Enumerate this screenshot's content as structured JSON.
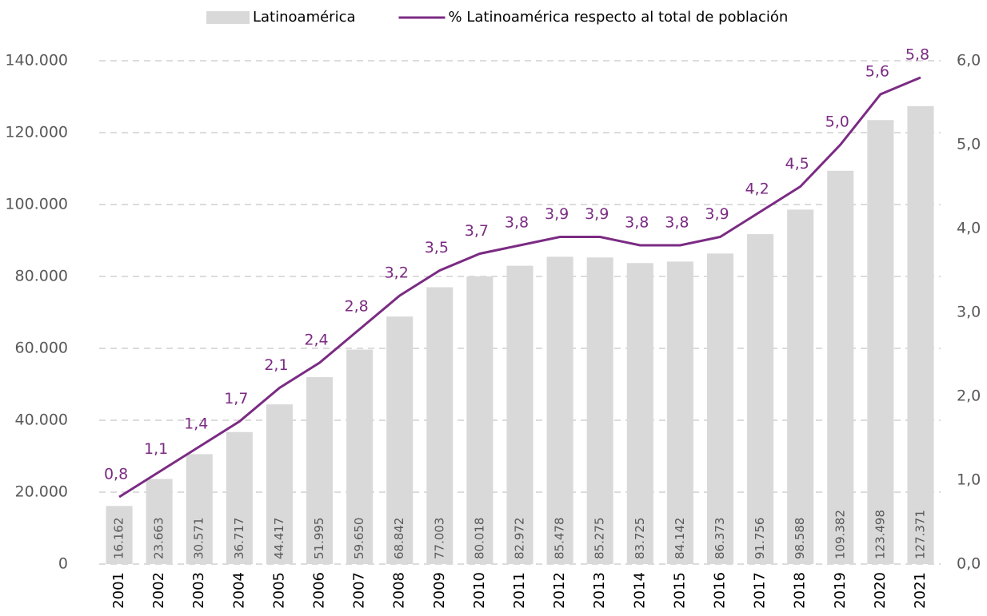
{
  "chart_data": {
    "type": "bar",
    "categories": [
      "2001",
      "2002",
      "2003",
      "2004",
      "2005",
      "2006",
      "2007",
      "2008",
      "2009",
      "2010",
      "2011",
      "2012",
      "2013",
      "2014",
      "2015",
      "2016",
      "2017",
      "2018",
      "2019",
      "2020",
      "2021"
    ],
    "series": [
      {
        "name": "Latinoamérica",
        "type": "bar",
        "color": "#d9d9d9",
        "values": [
          16162,
          23663,
          30571,
          36717,
          44417,
          51995,
          59650,
          68842,
          77003,
          80018,
          82972,
          85478,
          85275,
          83725,
          84142,
          86373,
          91756,
          98588,
          109382,
          123498,
          127371
        ],
        "value_labels": [
          "16.162",
          "23.663",
          "30.571",
          "36.717",
          "44.417",
          "51.995",
          "59.650",
          "68.842",
          "77.003",
          "80.018",
          "82.972",
          "85.478",
          "85.275",
          "83.725",
          "84.142",
          "86.373",
          "91.756",
          "98.588",
          "109.382",
          "123.498",
          "127.371"
        ]
      },
      {
        "name": "% Latinoamérica respecto al total de población",
        "type": "line",
        "axis": "y2",
        "color": "#7b2b83",
        "values": [
          0.8,
          1.1,
          1.4,
          1.7,
          2.1,
          2.4,
          2.8,
          3.2,
          3.5,
          3.7,
          3.8,
          3.9,
          3.9,
          3.8,
          3.8,
          3.9,
          4.2,
          4.5,
          5.0,
          5.6,
          5.8
        ],
        "value_labels": [
          "0,8",
          "1,1",
          "1,4",
          "1,7",
          "2,1",
          "2,4",
          "2,8",
          "3,2",
          "3,5",
          "3,7",
          "3,8",
          "3,9",
          "3,9",
          "3,8",
          "3,8",
          "3,9",
          "4,2",
          "4,5",
          "5,0",
          "5,6",
          "5,8"
        ]
      }
    ],
    "ylim": [
      0,
      140000
    ],
    "yticks": [
      0,
      {
        "value": 20000,
        "label": "20.000"
      },
      {
        "value": 40000,
        "label": "40.000"
      },
      {
        "value": 60000,
        "label": "60.000"
      },
      {
        "value": 80000,
        "label": "80.000"
      },
      {
        "value": 100000,
        "label": "100.000"
      },
      {
        "value": 120000,
        "label": "120.000"
      },
      {
        "value": 140000,
        "label": "140.000"
      }
    ],
    "y2lim": [
      0,
      6
    ],
    "y2ticks": [
      {
        "value": 0,
        "label": "0,0"
      },
      {
        "value": 1,
        "label": "1,0"
      },
      {
        "value": 2,
        "label": "2,0"
      },
      {
        "value": 3,
        "label": "3,0"
      },
      {
        "value": 4,
        "label": "4,0"
      },
      {
        "value": 5,
        "label": "5,0"
      },
      {
        "value": 6,
        "label": "6,0"
      }
    ],
    "grid": true,
    "legend": "top"
  }
}
